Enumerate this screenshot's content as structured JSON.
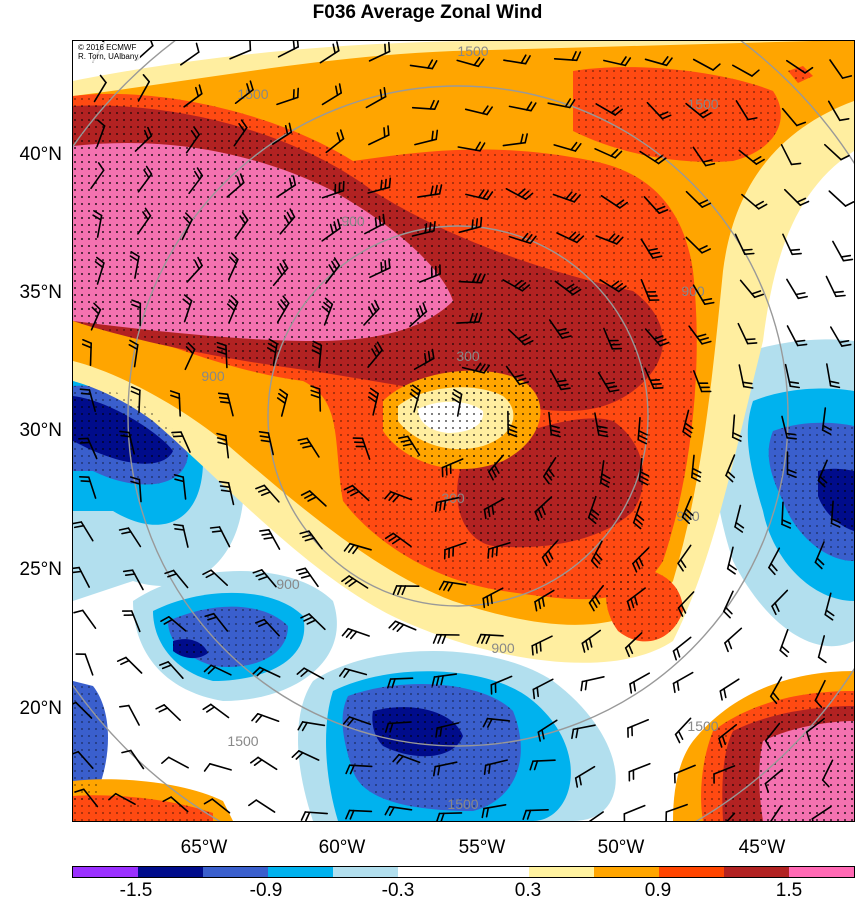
{
  "title": "F036 Average Zonal Wind",
  "copyright": {
    "line1": "© 2016 ECMWF",
    "line2": "R. Torn, UAlbany"
  },
  "latitude_labels": [
    "40°N",
    "35°N",
    "30°N",
    "25°N",
    "20°N"
  ],
  "longitude_labels": [
    "65°W",
    "60°W",
    "55°W",
    "50°W",
    "45°W"
  ],
  "range_ring_labels": [
    "300",
    "900",
    "1500"
  ],
  "colorbar": {
    "labels": [
      "-1.5",
      "-0.9",
      "-0.3",
      "0.3",
      "0.9",
      "1.5"
    ],
    "colors": [
      "#9b30ff",
      "#000c8b",
      "#3a5fcd",
      "#00b2ee",
      "#b2dfee",
      "#ffffff",
      "#ffffff",
      "#fff2a0",
      "#ffa500",
      "#ff4500",
      "#b22222",
      "#ff69b4"
    ]
  },
  "palette": {
    "pink": "#f472b0",
    "darkred": "#b22222",
    "orangered": "#ff4a12",
    "orange": "#ffa500",
    "yellow": "#ffeea0",
    "lightblue": "#b2dfee",
    "cyan": "#00b2ee",
    "blue": "#3a5fcd",
    "navy": "#000c8b",
    "ring": "#999999"
  }
}
